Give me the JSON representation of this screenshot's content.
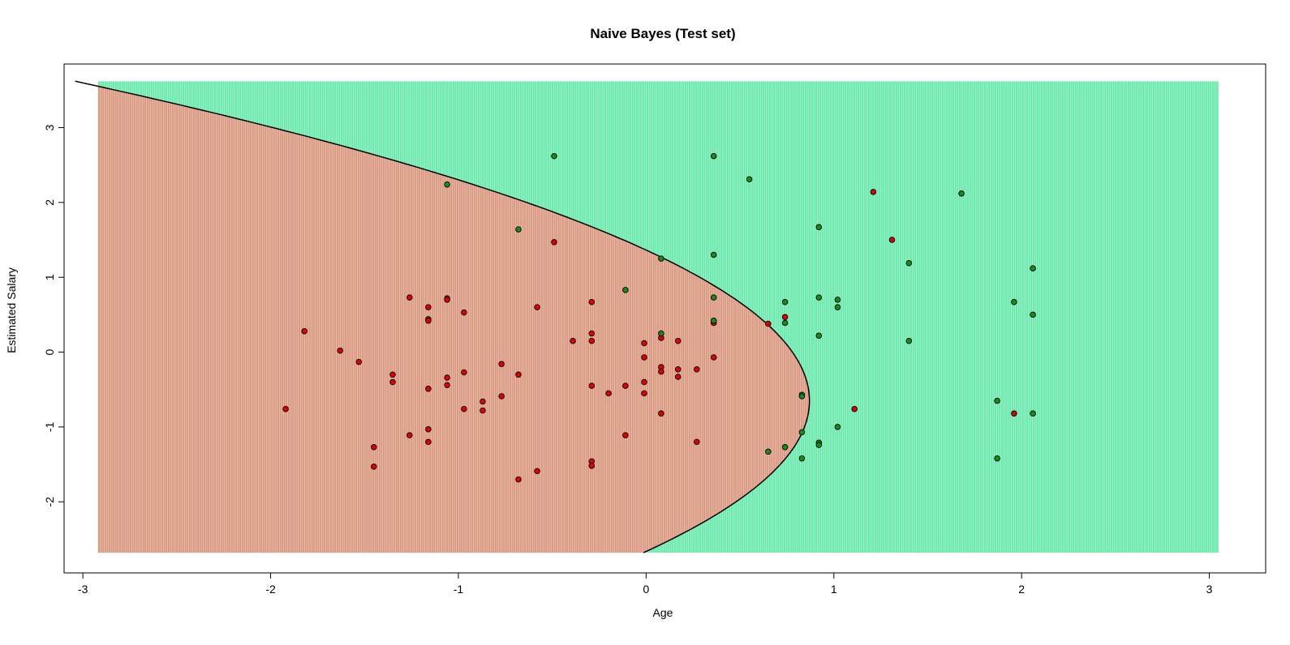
{
  "chart_data": {
    "type": "scatter",
    "title": "Naive Bayes (Test set)",
    "xlabel": "Age",
    "ylabel": "Estimated Salary",
    "xlim": [
      -3.1,
      3.3
    ],
    "ylim": [
      -2.95,
      3.85
    ],
    "x_ticks": [
      -3,
      -2,
      -1,
      0,
      1,
      2,
      3
    ],
    "y_ticks": [
      -2,
      -1,
      0,
      1,
      2,
      3
    ],
    "grid": false,
    "region": {
      "x_range": [
        -2.92,
        3.05
      ],
      "y_range": [
        -2.68,
        3.62
      ]
    },
    "boundary": {
      "vertex_x": 0.87,
      "vertex_y": -0.65,
      "curvature": 0.2145
    },
    "colors": {
      "region_class0": "#fa8072",
      "region_class1": "#2ee08a",
      "point_class0": "#e00000",
      "point_class1": "#1a8a1a",
      "boundary": "#000000"
    },
    "series": [
      {
        "class": 0,
        "points": [
          [
            -1.92,
            -0.76
          ],
          [
            -1.82,
            0.28
          ],
          [
            -1.63,
            0.02
          ],
          [
            -1.53,
            -0.13
          ],
          [
            -1.35,
            -0.3
          ],
          [
            -1.35,
            -0.4
          ],
          [
            -1.45,
            -1.27
          ],
          [
            -1.45,
            -1.53
          ],
          [
            -1.26,
            0.73
          ],
          [
            -1.26,
            -1.11
          ],
          [
            -1.16,
            0.6
          ],
          [
            -1.16,
            0.44
          ],
          [
            -1.16,
            0.42
          ],
          [
            -1.16,
            -0.49
          ],
          [
            -1.16,
            -1.03
          ],
          [
            -1.16,
            -1.2
          ],
          [
            -1.06,
            0.72
          ],
          [
            -1.06,
            0.7
          ],
          [
            -1.06,
            -0.34
          ],
          [
            -1.06,
            -0.44
          ],
          [
            -0.97,
            0.53
          ],
          [
            -0.97,
            -0.27
          ],
          [
            -0.97,
            -0.76
          ],
          [
            -0.87,
            -0.66
          ],
          [
            -0.87,
            -0.78
          ],
          [
            -0.77,
            -0.16
          ],
          [
            -0.77,
            -0.59
          ],
          [
            -0.68,
            -0.3
          ],
          [
            -0.68,
            -1.7
          ],
          [
            -0.58,
            0.6
          ],
          [
            -0.58,
            -1.59
          ],
          [
            -0.49,
            1.47
          ],
          [
            -0.39,
            0.15
          ],
          [
            -0.29,
            0.67
          ],
          [
            -0.29,
            0.25
          ],
          [
            -0.29,
            0.15
          ],
          [
            -0.29,
            -0.45
          ],
          [
            -0.29,
            -1.46
          ],
          [
            -0.29,
            -1.52
          ],
          [
            -0.2,
            -0.55
          ],
          [
            -0.11,
            -0.45
          ],
          [
            -0.11,
            -1.11
          ],
          [
            -0.01,
            0.12
          ],
          [
            -0.01,
            -0.07
          ],
          [
            -0.01,
            -0.4
          ],
          [
            -0.01,
            -0.55
          ],
          [
            0.08,
            0.19
          ],
          [
            0.08,
            -0.2
          ],
          [
            0.08,
            -0.26
          ],
          [
            0.08,
            -0.82
          ],
          [
            0.17,
            0.15
          ],
          [
            0.17,
            -0.23
          ],
          [
            0.17,
            -0.33
          ],
          [
            0.27,
            -0.23
          ],
          [
            0.27,
            -1.2
          ],
          [
            0.36,
            0.39
          ],
          [
            0.36,
            -0.07
          ],
          [
            0.65,
            0.38
          ],
          [
            0.74,
            0.47
          ],
          [
            1.11,
            -0.76
          ],
          [
            1.21,
            2.14
          ],
          [
            1.31,
            1.5
          ],
          [
            1.96,
            -0.82
          ]
        ]
      },
      {
        "class": 1,
        "points": [
          [
            -1.06,
            2.24
          ],
          [
            -0.68,
            1.64
          ],
          [
            -0.49,
            2.62
          ],
          [
            -0.11,
            0.83
          ],
          [
            0.08,
            1.25
          ],
          [
            0.08,
            0.25
          ],
          [
            0.36,
            2.62
          ],
          [
            0.36,
            1.3
          ],
          [
            0.36,
            0.73
          ],
          [
            0.36,
            0.42
          ],
          [
            0.55,
            2.31
          ],
          [
            0.65,
            -1.33
          ],
          [
            0.74,
            0.67
          ],
          [
            0.74,
            0.39
          ],
          [
            0.74,
            -1.27
          ],
          [
            0.83,
            -0.57
          ],
          [
            0.83,
            -0.59
          ],
          [
            0.83,
            -1.07
          ],
          [
            0.83,
            -1.42
          ],
          [
            0.92,
            1.67
          ],
          [
            0.92,
            0.73
          ],
          [
            0.92,
            0.22
          ],
          [
            0.92,
            -1.21
          ],
          [
            0.92,
            -1.24
          ],
          [
            1.02,
            0.7
          ],
          [
            1.02,
            0.6
          ],
          [
            1.02,
            -1.0
          ],
          [
            1.4,
            1.19
          ],
          [
            1.4,
            0.15
          ],
          [
            1.68,
            2.12
          ],
          [
            1.87,
            -0.65
          ],
          [
            1.87,
            -1.42
          ],
          [
            1.96,
            0.67
          ],
          [
            2.06,
            1.12
          ],
          [
            2.06,
            0.5
          ],
          [
            2.06,
            -0.82
          ]
        ]
      }
    ]
  }
}
